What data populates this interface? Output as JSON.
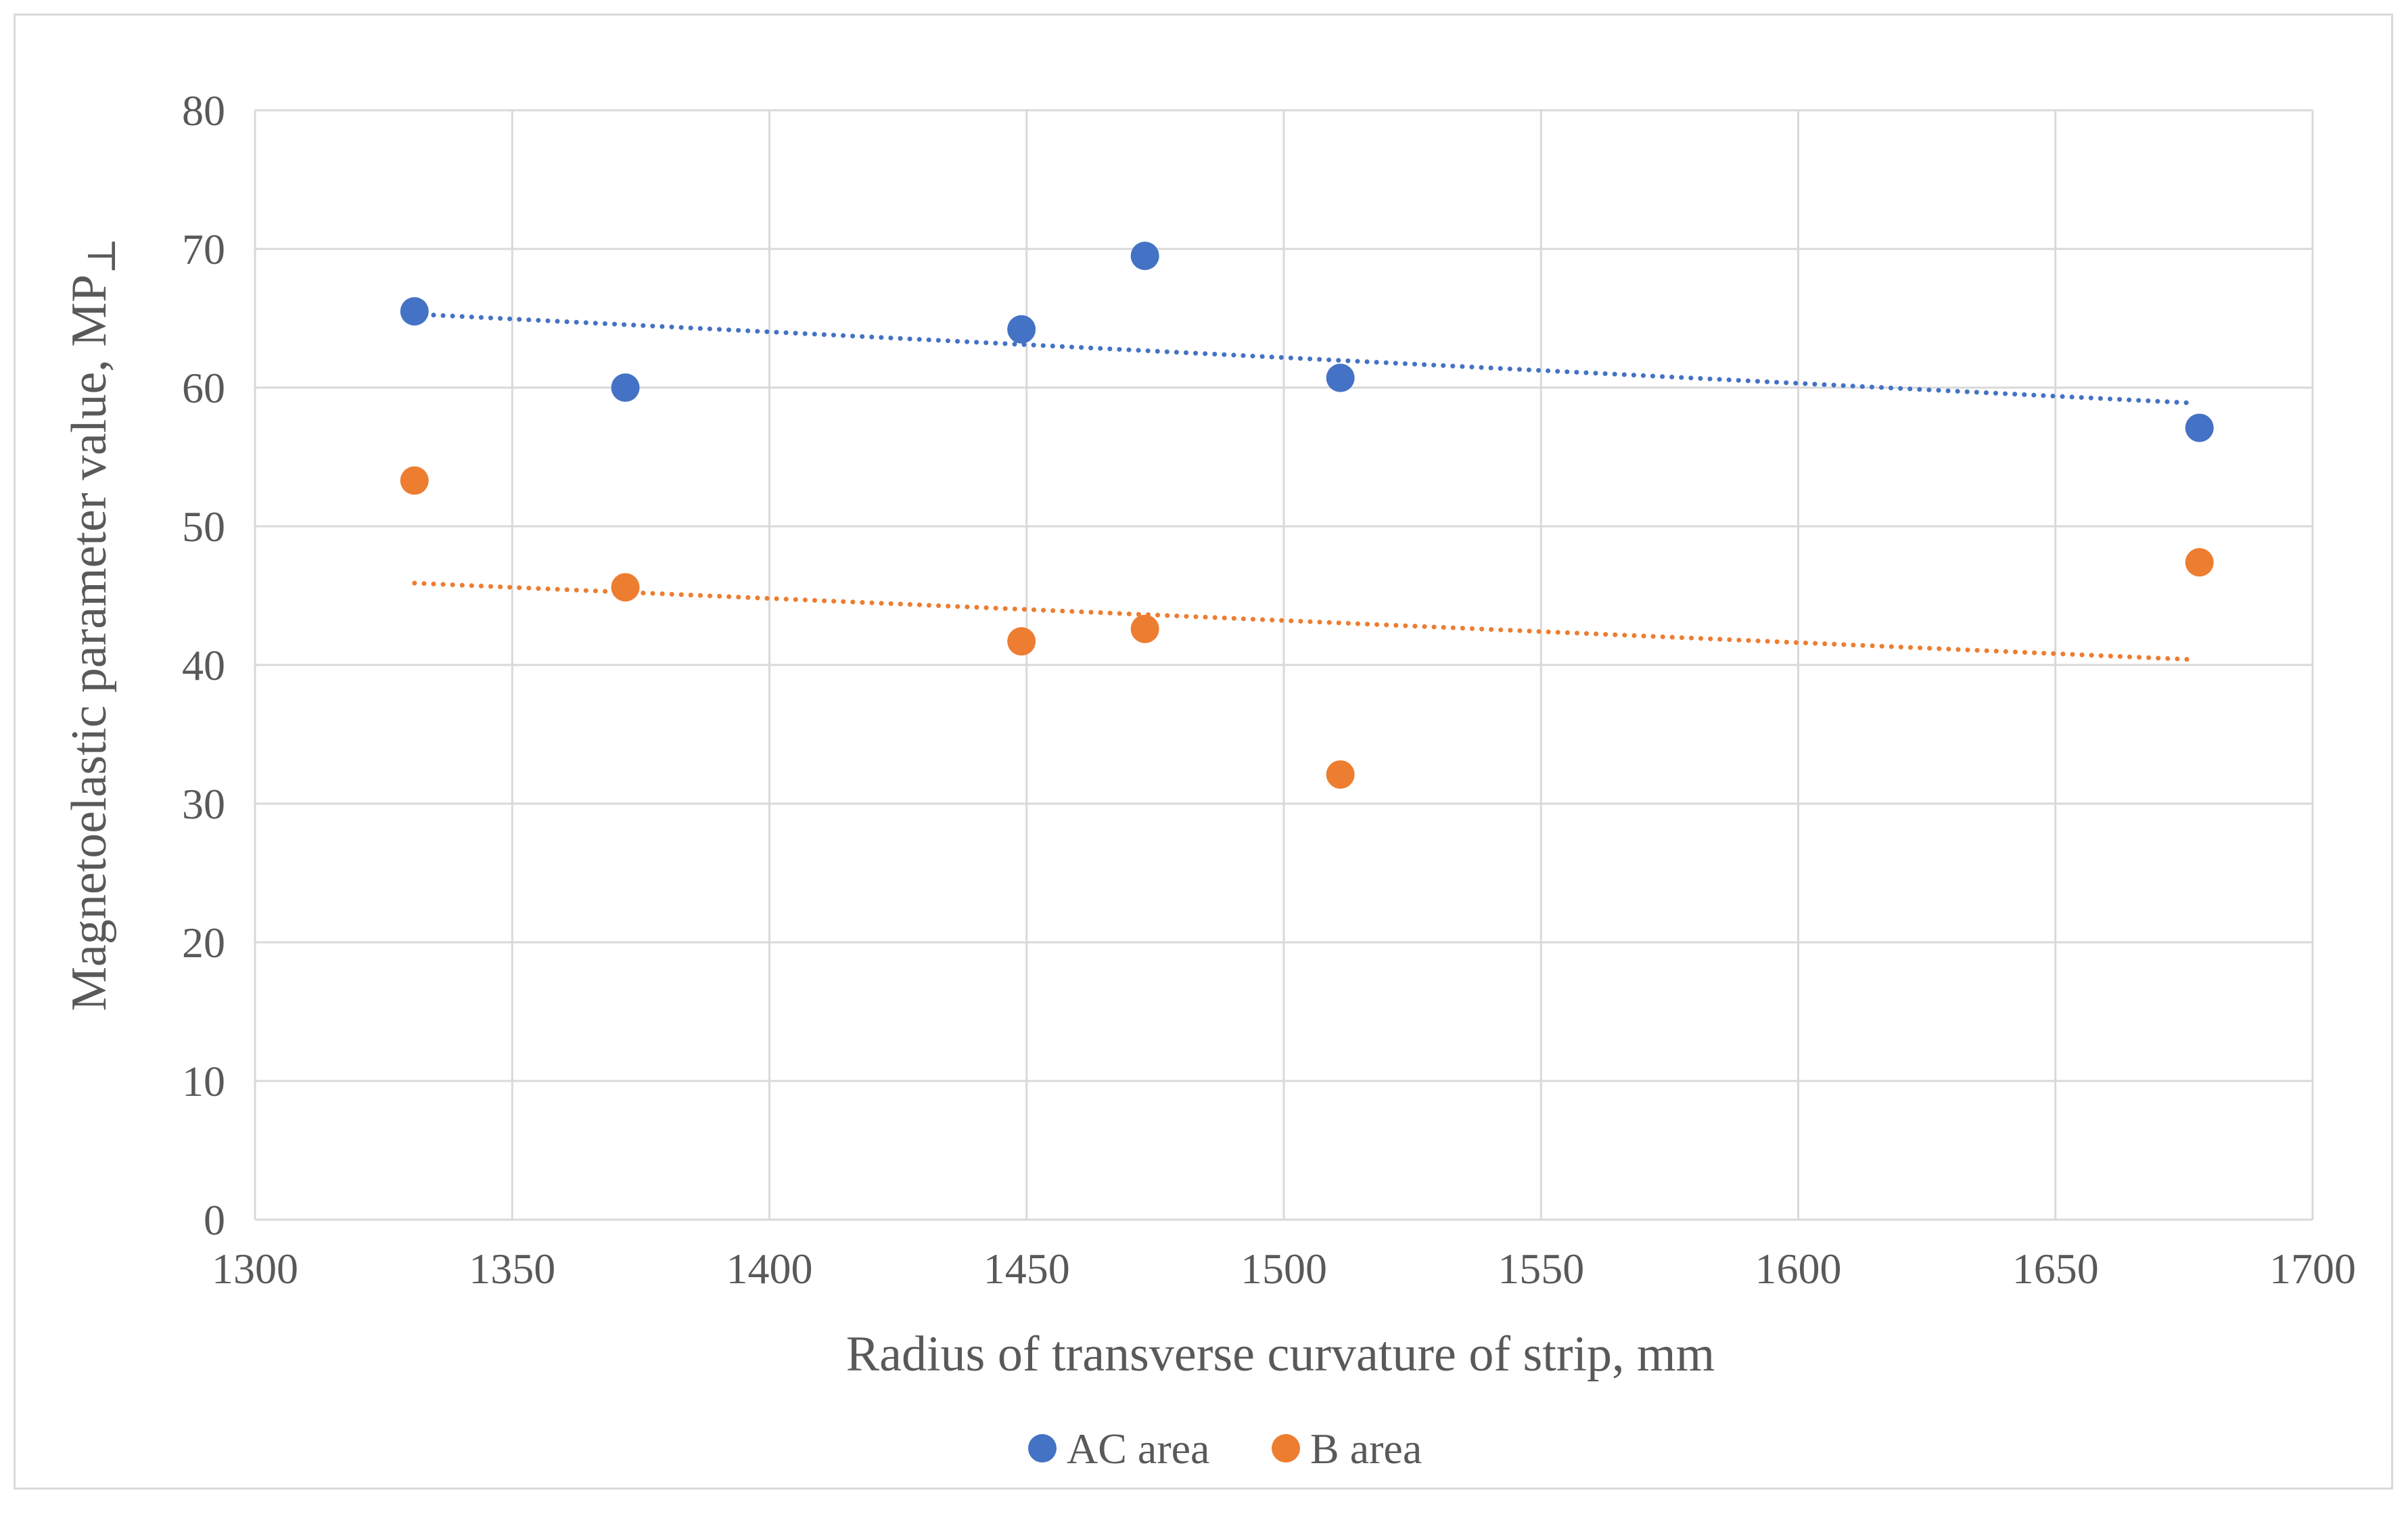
{
  "chart_data": {
    "type": "scatter",
    "title": "",
    "xlabel": "Radius of transverse curvature of strip, mm",
    "ylabel": "Magnetoelastic  parameter value, MP",
    "ylabel_subscript": "⊥",
    "xlim": [
      1300,
      1700
    ],
    "ylim": [
      0,
      80
    ],
    "x_ticks": [
      1300,
      1350,
      1400,
      1450,
      1500,
      1550,
      1600,
      1650,
      1700
    ],
    "y_ticks": [
      0,
      10,
      20,
      30,
      40,
      50,
      60,
      70,
      80
    ],
    "grid": true,
    "legend_position": "bottom",
    "series": [
      {
        "name": "AC area",
        "color": "#4472c4",
        "points": [
          [
            1331,
            65.5
          ],
          [
            1372,
            60.0
          ],
          [
            1449,
            64.2
          ],
          [
            1473,
            69.5
          ],
          [
            1511,
            60.7
          ],
          [
            1678,
            57.1
          ]
        ],
        "trendline": {
          "type": "linear",
          "start": [
            1331,
            65.3
          ],
          "end": [
            1676,
            58.9
          ]
        }
      },
      {
        "name": "B area",
        "color": "#ed7d31",
        "points": [
          [
            1331,
            53.3
          ],
          [
            1372,
            45.6
          ],
          [
            1449,
            41.7
          ],
          [
            1473,
            42.6
          ],
          [
            1511,
            32.1
          ],
          [
            1678,
            47.4
          ]
        ],
        "trendline": {
          "type": "linear",
          "start": [
            1331,
            45.9
          ],
          "end": [
            1676,
            40.4
          ]
        }
      }
    ]
  }
}
